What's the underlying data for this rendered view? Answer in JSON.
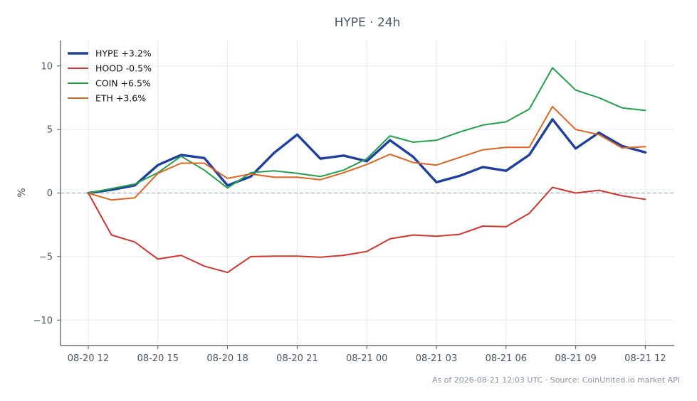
{
  "chart_data": {
    "type": "line",
    "title": "HYPE · 24h",
    "ylabel": "%",
    "xlabel": "",
    "ylim": [
      -12,
      12
    ],
    "yticks": [
      -10,
      -5,
      0,
      5,
      10
    ],
    "ytick_labels": [
      "−10",
      "−5",
      "0",
      "5",
      "10"
    ],
    "x": [
      "08-20 12:00",
      "08-20 13:00",
      "08-20 14:00",
      "08-20 15:00",
      "08-20 16:00",
      "08-20 17:00",
      "08-20 18:00",
      "08-20 19:00",
      "08-20 20:00",
      "08-20 21:00",
      "08-20 22:00",
      "08-20 23:00",
      "08-21 00:00",
      "08-21 01:00",
      "08-21 02:00",
      "08-21 03:00",
      "08-21 04:00",
      "08-21 05:00",
      "08-21 06:00",
      "08-21 07:00",
      "08-21 08:00",
      "08-21 09:00",
      "08-21 10:00",
      "08-21 11:00",
      "08-21 12:00"
    ],
    "xticks": [
      "08-20 12",
      "08-20 15",
      "08-20 18",
      "08-20 21",
      "08-21 00",
      "08-21 03",
      "08-21 06",
      "08-21 09",
      "08-21 12"
    ],
    "grid": true,
    "zero_line": true,
    "legend_position": "top-left",
    "series": [
      {
        "name": "HYPE +3.2%",
        "color": "#1f3f9e",
        "values": [
          0,
          0.25,
          0.6,
          2.2,
          3.0,
          2.75,
          0.6,
          1.3,
          3.15,
          4.6,
          2.7,
          2.95,
          2.5,
          4.15,
          2.85,
          0.85,
          1.35,
          2.05,
          1.75,
          3.0,
          5.8,
          3.5,
          4.75,
          3.7,
          3.2
        ]
      },
      {
        "name": "HOOD -0.5%",
        "color": "#d1352b",
        "values": [
          0,
          -3.3,
          -3.85,
          -5.2,
          -4.9,
          -5.75,
          -6.25,
          -5.0,
          -4.97,
          -4.97,
          -5.05,
          -4.9,
          -4.6,
          -3.6,
          -3.3,
          -3.4,
          -3.25,
          -2.6,
          -2.65,
          -1.6,
          0.45,
          0.0,
          0.22,
          -0.22,
          -0.5
        ]
      },
      {
        "name": "COIN +6.5%",
        "color": "#21a04a",
        "values": [
          0,
          0.35,
          0.7,
          1.6,
          2.9,
          1.8,
          0.4,
          1.6,
          1.75,
          1.55,
          1.3,
          1.8,
          2.7,
          4.5,
          4.0,
          4.15,
          4.8,
          5.35,
          5.6,
          6.6,
          9.85,
          8.1,
          7.5,
          6.7,
          6.5
        ]
      },
      {
        "name": "ETH +3.6%",
        "color": "#df6420",
        "values": [
          0,
          -0.55,
          -0.38,
          1.55,
          2.35,
          2.35,
          1.15,
          1.5,
          1.25,
          1.25,
          1.05,
          1.6,
          2.25,
          3.05,
          2.4,
          2.2,
          2.8,
          3.4,
          3.6,
          3.6,
          6.8,
          5.0,
          4.6,
          3.55,
          3.65
        ]
      }
    ],
    "footer": "As of 2026-08-21 12:03 UTC · Source: CoinUnited.io market API"
  }
}
